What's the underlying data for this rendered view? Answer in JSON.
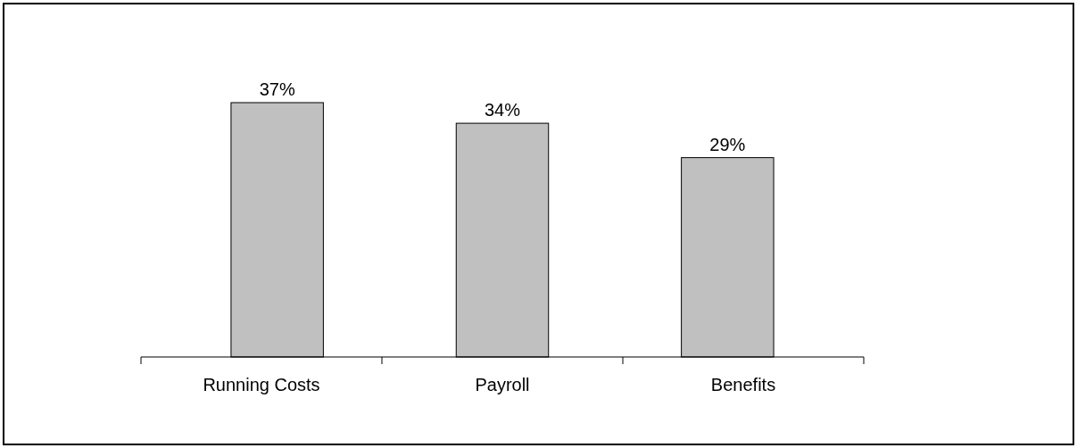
{
  "chart_data": {
    "type": "bar",
    "categories": [
      "Running Costs",
      "Payroll",
      "Benefits"
    ],
    "values": [
      37,
      34,
      29
    ],
    "color": "#c0c0c0",
    "value_labels": [
      "37%",
      "34%",
      "29%"
    ]
  }
}
